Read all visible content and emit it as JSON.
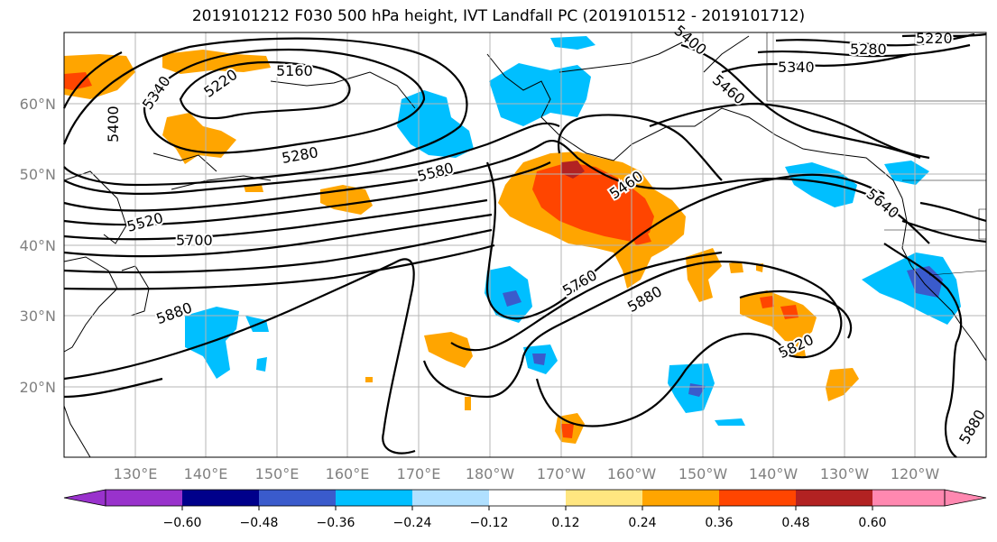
{
  "title": "2019101212 F030 500 hPa height, IVT Landfall PC (2019101512 - 2019101712)",
  "lat_labels": [
    "60°N",
    "50°N",
    "40°N",
    "30°N",
    "20°N"
  ],
  "lon_labels": [
    "130°E",
    "140°E",
    "150°E",
    "160°E",
    "170°E",
    "180°W",
    "170°W",
    "160°W",
    "150°W",
    "140°W",
    "130°W",
    "120°W"
  ],
  "contour_labels": [
    "5340",
    "5220",
    "5160",
    "5400",
    "5280",
    "5580",
    "5460",
    "5520",
    "5700",
    "5880",
    "5760",
    "5880",
    "5820",
    "5640",
    "5460",
    "5400",
    "5340",
    "5280",
    "5220",
    "5880"
  ],
  "colorbar": {
    "ticks": [
      "−0.60",
      "−0.48",
      "−0.36",
      "−0.24",
      "−0.12",
      "0.12",
      "0.24",
      "0.36",
      "0.48",
      "0.60"
    ],
    "colors": [
      "#9932cc",
      "#00008b",
      "#3a5bcc",
      "#00bfff",
      "#b0e0ff",
      "#ffffff",
      "#ffe680",
      "#ffa500",
      "#ff4500",
      "#b22222",
      "#ff88b0"
    ]
  }
}
